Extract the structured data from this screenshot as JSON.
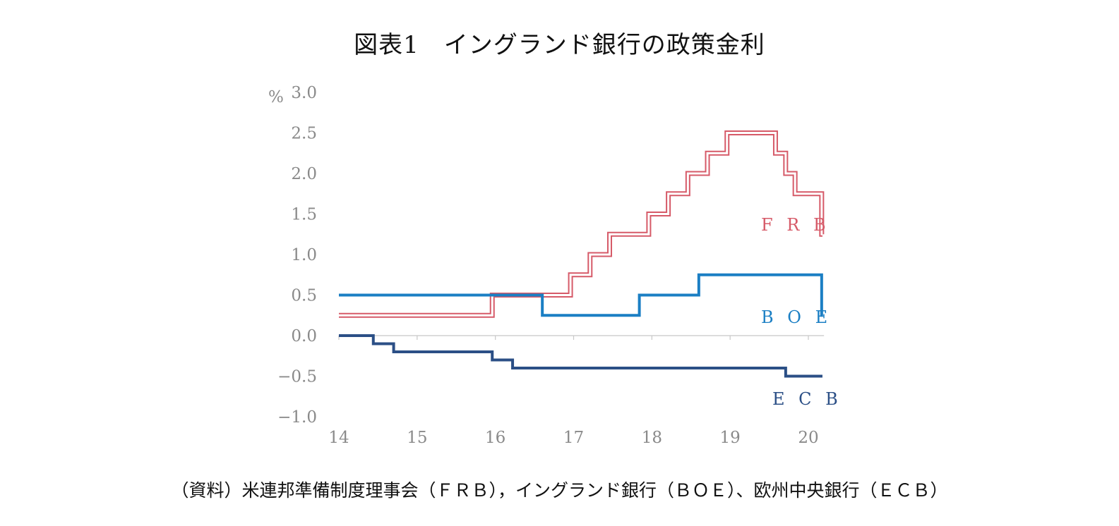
{
  "title": "図表1　イングランド銀行の政策金利",
  "source_note": "（資料）米連邦準備制度理事会（ＦＲＢ），イングランド銀行（ＢＯＥ）、欧州中央銀行（ＥＣＢ）",
  "chart_data": {
    "type": "line",
    "step": true,
    "title": "図表1　イングランド銀行の政策金利",
    "ylabel": "%",
    "xlabel": "",
    "x_ticks": [
      "14",
      "15",
      "16",
      "17",
      "18",
      "19",
      "20"
    ],
    "y_ticks": [
      "3.0",
      "2.5",
      "2.0",
      "1.5",
      "1.0",
      "0.5",
      "0.0",
      "−0.5",
      "−1.0"
    ],
    "ylim": [
      -1.0,
      3.0
    ],
    "xlim": [
      14,
      20.2
    ],
    "grid": false,
    "legend": "inline labels at right end of each series",
    "series": [
      {
        "name": "ＦＲＢ",
        "label": "F R B",
        "color": "#d65a68",
        "style": "double-line",
        "points": [
          [
            14.0,
            0.25
          ],
          [
            15.96,
            0.5
          ],
          [
            16.96,
            0.75
          ],
          [
            17.21,
            1.0
          ],
          [
            17.46,
            1.25
          ],
          [
            17.96,
            1.5
          ],
          [
            18.21,
            1.75
          ],
          [
            18.46,
            2.0
          ],
          [
            18.71,
            2.25
          ],
          [
            18.96,
            2.5
          ],
          [
            19.58,
            2.25
          ],
          [
            19.71,
            2.0
          ],
          [
            19.83,
            1.75
          ],
          [
            20.17,
            1.25
          ]
        ],
        "end": 20.18
      },
      {
        "name": "ＢＯＥ",
        "label": "B O E",
        "color": "#1b7fc4",
        "style": "solid",
        "points": [
          [
            14.0,
            0.5
          ],
          [
            16.6,
            0.25
          ],
          [
            17.84,
            0.5
          ],
          [
            18.6,
            0.75
          ],
          [
            20.17,
            0.25
          ]
        ],
        "end": 20.18
      },
      {
        "name": "ＥＣＢ",
        "label": "E C B",
        "color": "#2b4f86",
        "style": "solid",
        "points": [
          [
            14.0,
            0.0
          ],
          [
            14.44,
            -0.1
          ],
          [
            14.7,
            -0.2
          ],
          [
            15.96,
            -0.3
          ],
          [
            16.22,
            -0.4
          ],
          [
            19.71,
            -0.5
          ]
        ],
        "end": 20.18
      }
    ]
  }
}
